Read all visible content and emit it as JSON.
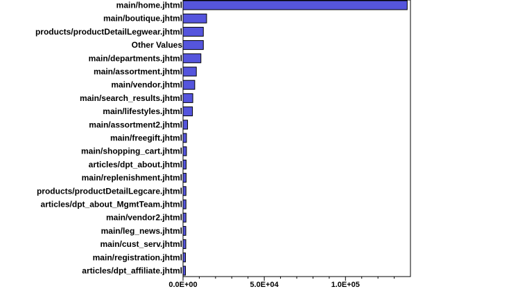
{
  "chart_data": {
    "type": "bar",
    "orientation": "horizontal",
    "title": "",
    "xlabel": "",
    "ylabel": "",
    "categories": [
      "main/home.jhtml",
      "main/boutique.jhtml",
      "products/productDetailLegwear.jhtml",
      "Other Values",
      "main/departments.jhtml",
      "main/assortment.jhtml",
      "main/vendor.jhtml",
      "main/search_results.jhtml",
      "main/lifestyles.jhtml",
      "main/assortment2.jhtml",
      "main/freegift.jhtml",
      "main/shopping_cart.jhtml",
      "articles/dpt_about.jhtml",
      "main/replenishment.jhtml",
      "products/productDetailLegcare.jhtml",
      "articles/dpt_about_MgmtTeam.jhtml",
      "main/vendor2.jhtml",
      "main/leg_news.jhtml",
      "main/cust_serv.jhtml",
      "main/registration.jhtml",
      "articles/dpt_affiliate.jhtml"
    ],
    "values": [
      138000,
      14500,
      12500,
      12500,
      11000,
      8200,
      7200,
      6000,
      5800,
      2800,
      2100,
      2100,
      1900,
      1900,
      1800,
      1800,
      1800,
      1700,
      1700,
      1500,
      1500
    ],
    "xlim": [
      0,
      140000
    ],
    "x_ticks": [
      {
        "value": 0,
        "label": "0.0E+00"
      },
      {
        "value": 50000,
        "label": "5.0E+04"
      },
      {
        "value": 100000,
        "label": "1.0E+05"
      }
    ],
    "bar_color": "#5555dd",
    "bar_edge_color": "#000000",
    "grid": false,
    "legend": "none"
  }
}
